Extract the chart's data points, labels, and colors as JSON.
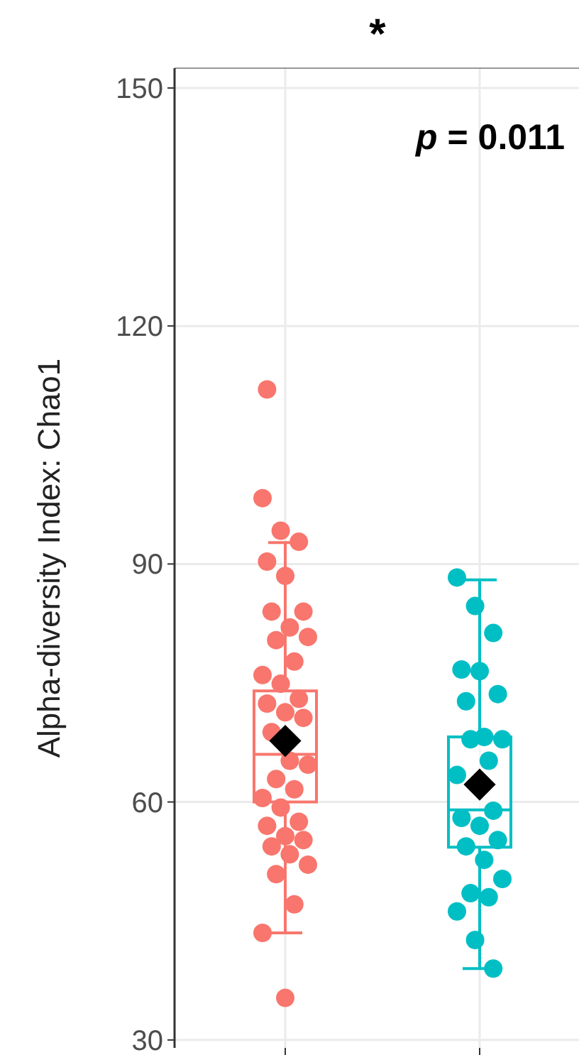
{
  "chart_data": {
    "type": "box",
    "ylabel": "Alpha-diversity Index: Chao1",
    "annotations": [
      "*",
      "p = 0.011"
    ],
    "categories": [
      null,
      null
    ],
    "boxes": [
      {
        "low": 43.5,
        "q1": 60,
        "median": 66,
        "q3": 74,
        "high": 92.7,
        "mean": 67.7,
        "outliers": [
          112,
          35.3
        ]
      },
      {
        "low": 39,
        "q1": 54.3,
        "median": 59,
        "q3": 68.2,
        "high": 88,
        "mean": 62.2
      }
    ],
    "series": [
      {
        "type": "scatter",
        "colors": [
          "#f8766d",
          "#00bfc4"
        ],
        "values": [
          98.3,
          88.3
        ]
      },
      {
        "type": "scatter",
        "colors": [
          "#f8766d",
          "#00bfc4"
        ],
        "values": [
          94.2,
          84.7
        ]
      },
      {
        "type": "scatter",
        "colors": [
          "#f8766d",
          "#00bfc4"
        ],
        "values": [
          92.8,
          81.3
        ]
      },
      {
        "type": "scatter",
        "colors": [
          "#f8766d",
          "#00bfc4"
        ],
        "values": [
          90.3,
          76.7
        ]
      },
      {
        "type": "scatter",
        "colors": [
          "#f8766d",
          "#00bfc4"
        ],
        "values": [
          88.5,
          76.5
        ]
      },
      {
        "type": "scatter",
        "colors": [
          "#f8766d",
          "#00bfc4"
        ],
        "values": [
          84,
          73.6
        ]
      },
      {
        "type": "scatter",
        "colors": [
          "#f8766d",
          "#00bfc4"
        ],
        "values": [
          84,
          72.7
        ]
      },
      {
        "type": "scatter",
        "colors": [
          "#f8766d",
          "#00bfc4"
        ],
        "values": [
          82,
          68.2
        ]
      },
      {
        "type": "scatter",
        "colors": [
          "#f8766d",
          "#00bfc4"
        ],
        "values": [
          80.8,
          67.9
        ]
      },
      {
        "type": "scatter",
        "colors": [
          "#f8766d",
          "#00bfc4"
        ],
        "values": [
          80.4,
          67.9
        ]
      },
      {
        "type": "scatter",
        "colors": [
          "#f8766d",
          "#00bfc4"
        ],
        "values": [
          77.7,
          65.2
        ]
      },
      {
        "type": "scatter",
        "colors": [
          "#f8766d",
          "#00bfc4"
        ],
        "values": [
          76,
          63.4
        ]
      },
      {
        "type": "scatter",
        "colors": [
          "#f8766d",
          null
        ],
        "values": [
          74.9,
          null
        ]
      },
      {
        "type": "scatter",
        "colors": [
          "#f8766d",
          "#00bfc4"
        ],
        "values": [
          73,
          58.9
        ]
      },
      {
        "type": "scatter",
        "colors": [
          "#f8766d",
          "#00bfc4"
        ],
        "values": [
          72.4,
          58
        ]
      },
      {
        "type": "scatter",
        "colors": [
          "#f8766d",
          "#00bfc4"
        ],
        "values": [
          71.3,
          57
        ]
      },
      {
        "type": "scatter",
        "colors": [
          "#f8766d",
          "#00bfc4"
        ],
        "values": [
          70.6,
          55.2
        ]
      },
      {
        "type": "scatter",
        "colors": [
          "#f8766d",
          "#00bfc4"
        ],
        "values": [
          68.8,
          54.4
        ]
      },
      {
        "type": "scatter",
        "colors": [
          "#f8766d",
          "#00bfc4"
        ],
        "values": [
          65.2,
          52.7
        ]
      },
      {
        "type": "scatter",
        "colors": [
          "#f8766d",
          "#00bfc4"
        ],
        "values": [
          64.7,
          50.3
        ]
      },
      {
        "type": "scatter",
        "colors": [
          "#f8766d",
          "#00bfc4"
        ],
        "values": [
          62.9,
          48.5
        ]
      },
      {
        "type": "scatter",
        "colors": [
          "#f8766d",
          "#00bfc4"
        ],
        "values": [
          61.6,
          48
        ]
      },
      {
        "type": "scatter",
        "colors": [
          "#f8766d",
          "#00bfc4"
        ],
        "values": [
          60.5,
          46.2
        ]
      },
      {
        "type": "scatter",
        "colors": [
          "#f8766d",
          "#00bfc4"
        ],
        "values": [
          59.3,
          42.6
        ]
      },
      {
        "type": "scatter",
        "colors": [
          "#f8766d",
          "#00bfc4"
        ],
        "values": [
          57.5,
          39
        ]
      },
      {
        "type": "scatter",
        "colors": [
          "#f8766d",
          null
        ],
        "values": [
          57,
          null
        ]
      },
      {
        "type": "scatter",
        "colors": [
          "#f8766d",
          null
        ],
        "values": [
          55.7,
          null
        ]
      },
      {
        "type": "scatter",
        "colors": [
          "#f8766d",
          null
        ],
        "values": [
          55.2,
          null
        ]
      },
      {
        "type": "scatter",
        "colors": [
          "#f8766d",
          null
        ],
        "values": [
          54.4,
          null
        ]
      },
      {
        "type": "scatter",
        "colors": [
          "#f8766d",
          null
        ],
        "values": [
          53.4,
          null
        ]
      },
      {
        "type": "scatter",
        "colors": [
          "#f8766d",
          null
        ],
        "values": [
          52.1,
          null
        ]
      },
      {
        "type": "scatter",
        "colors": [
          "#f8766d",
          null
        ],
        "values": [
          50.9,
          null
        ]
      },
      {
        "type": "scatter",
        "colors": [
          "#f8766d",
          null
        ],
        "values": [
          47.1,
          null
        ]
      },
      {
        "type": "scatter",
        "colors": [
          "#f8766d",
          null
        ],
        "values": [
          43.5,
          null
        ]
      }
    ],
    "ylim": [
      29,
      152.5
    ],
    "yticks": [
      30,
      60,
      90,
      120,
      150
    ],
    "grid": true
  }
}
